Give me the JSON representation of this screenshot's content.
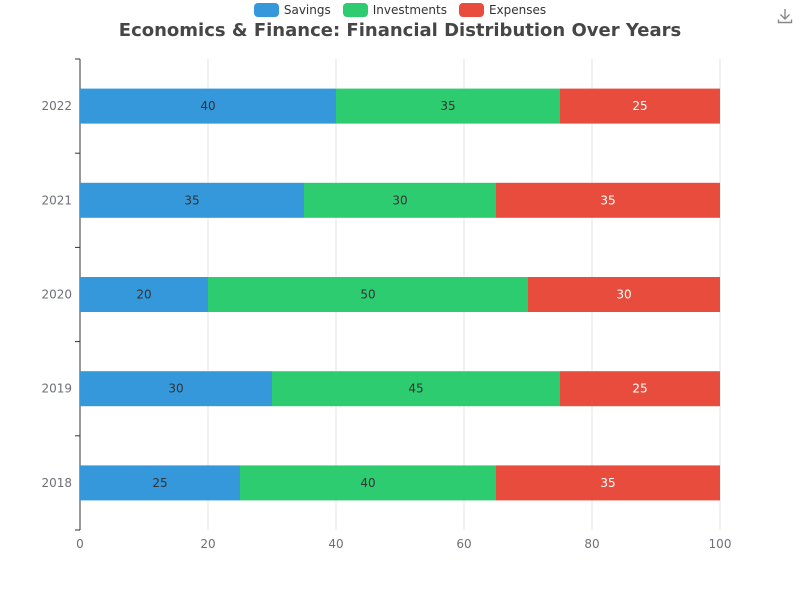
{
  "chart_data": {
    "type": "bar",
    "orientation": "horizontal",
    "stacked": true,
    "title": "Economics & Finance: Financial Distribution Over Years",
    "categories": [
      "2018",
      "2019",
      "2020",
      "2021",
      "2022"
    ],
    "series": [
      {
        "name": "Savings",
        "color": "#3498db",
        "label_color": "#333333",
        "values": [
          25,
          30,
          20,
          35,
          40
        ]
      },
      {
        "name": "Investments",
        "color": "#2ecc71",
        "label_color": "#333333",
        "values": [
          40,
          45,
          50,
          30,
          35
        ]
      },
      {
        "name": "Expenses",
        "color": "#e74c3c",
        "label_color": "#ffffff",
        "values": [
          35,
          25,
          30,
          35,
          25
        ]
      }
    ],
    "xlim": [
      0,
      100
    ],
    "xticks": [
      0,
      20,
      40,
      60,
      80,
      100
    ],
    "xlabel": "",
    "ylabel": "",
    "legend_position": "top-center",
    "grid": "vertical"
  },
  "toolbar": {
    "download_icon": "download-icon"
  }
}
